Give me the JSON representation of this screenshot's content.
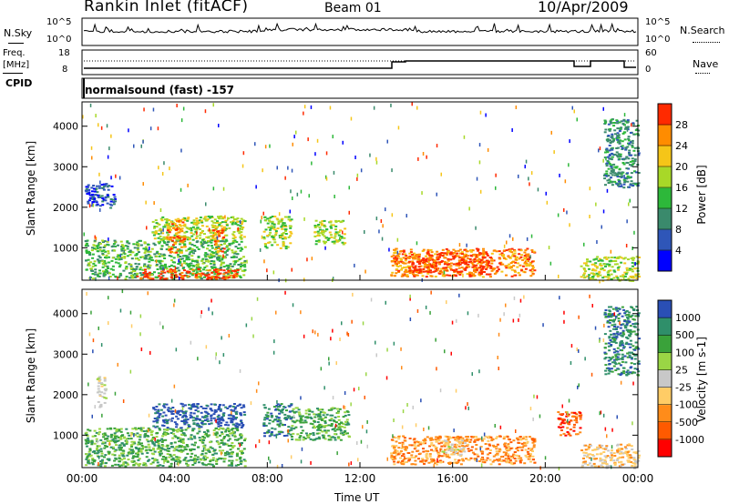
{
  "header": {
    "title": "Rankin Inlet (fitACF)",
    "beam": "Beam 01",
    "date": "10/Apr/2009"
  },
  "nsky_panel": {
    "left_label": "N.Sky",
    "right_label": "N.Search",
    "left_ticks": [
      "10^5",
      "10^0"
    ],
    "right_ticks": [
      "10^5",
      "10^0"
    ]
  },
  "freq_panel": {
    "left_label_1": "Freq.",
    "left_label_2": "[MHz]",
    "right_label": "Nave",
    "left_ticks": [
      "18",
      "8"
    ],
    "right_ticks": [
      "60",
      "0"
    ]
  },
  "cpid_panel": {
    "label": "CPID",
    "text": "normalsound (fast) -157"
  },
  "chart_data": [
    {
      "type": "heatmap",
      "panel": "power",
      "ylabel": "Slant Range [km]",
      "xlabel": "",
      "yticks": [
        1000,
        2000,
        3000,
        4000
      ],
      "ylim": [
        200,
        4600
      ],
      "xlim": [
        0,
        24
      ],
      "colorbar_label": "Power [dB]",
      "colorbar_ticks": [
        "4",
        "8",
        "12",
        "16",
        "20",
        "24",
        "28"
      ],
      "colors": [
        "#0000ff",
        "#2f56b8",
        "#3a8a6c",
        "#2db83a",
        "#a8d828",
        "#f5c518",
        "#ff8c00",
        "#ff2a00"
      ],
      "regions": [
        {
          "t0": 0.1,
          "t1": 7.0,
          "r0": 250,
          "r1": 1200,
          "level": 3
        },
        {
          "t0": 2.3,
          "t1": 6.7,
          "r0": 250,
          "r1": 500,
          "level": 7
        },
        {
          "t0": 3.0,
          "t1": 7.0,
          "r0": 1200,
          "r1": 1800,
          "level": 4
        },
        {
          "t0": 3.6,
          "t1": 4.4,
          "r0": 900,
          "r1": 1700,
          "level": 6
        },
        {
          "t0": 5.6,
          "t1": 6.1,
          "r0": 900,
          "r1": 1500,
          "level": 6
        },
        {
          "t0": 7.8,
          "t1": 9.0,
          "r0": 1000,
          "r1": 1800,
          "level": 4
        },
        {
          "t0": 10.0,
          "t1": 11.3,
          "r0": 1100,
          "r1": 1700,
          "level": 4
        },
        {
          "t0": 13.3,
          "t1": 19.5,
          "r0": 300,
          "r1": 1000,
          "level": 6
        },
        {
          "t0": 14.0,
          "t1": 17.5,
          "r0": 400,
          "r1": 900,
          "level": 7
        },
        {
          "t0": 0.1,
          "t1": 1.4,
          "r0": 2000,
          "r1": 2600,
          "level": 1
        },
        {
          "t0": 22.5,
          "t1": 24.0,
          "r0": 2500,
          "r1": 4200,
          "level": 2
        },
        {
          "t0": 21.5,
          "t1": 24.0,
          "r0": 200,
          "r1": 800,
          "level": 4
        }
      ]
    },
    {
      "type": "heatmap",
      "panel": "velocity",
      "ylabel": "Slant Range [km]",
      "xlabel": "Time UT",
      "yticks": [
        1000,
        2000,
        3000,
        4000
      ],
      "xticks": [
        "00:00",
        "04:00",
        "08:00",
        "12:00",
        "16:00",
        "20:00",
        "00:00"
      ],
      "ylim": [
        200,
        4600
      ],
      "xlim": [
        0,
        24
      ],
      "colorbar_label": "Velocity [m s-1]",
      "colorbar_ticks": [
        "1000",
        "500",
        "100",
        "25",
        "-25",
        "-100",
        "-500",
        "-1000"
      ],
      "colors": [
        "#2a4fb5",
        "#2f8f6a",
        "#3aa23a",
        "#9ad645",
        "#c8c8c8",
        "#ffcc66",
        "#ff8c1a",
        "#ff5a00",
        "#ff0000"
      ],
      "regions": [
        {
          "t0": 0.1,
          "t1": 7.0,
          "r0": 250,
          "r1": 1200,
          "level": 2
        },
        {
          "t0": 3.0,
          "t1": 7.0,
          "r0": 1200,
          "r1": 1800,
          "level": 0
        },
        {
          "t0": 7.8,
          "t1": 9.0,
          "r0": 1000,
          "r1": 1800,
          "level": 1
        },
        {
          "t0": 9.0,
          "t1": 11.5,
          "r0": 900,
          "r1": 1700,
          "level": 2
        },
        {
          "t0": 13.3,
          "t1": 19.5,
          "r0": 300,
          "r1": 1000,
          "level": 6
        },
        {
          "t0": 15.5,
          "t1": 16.5,
          "r0": 500,
          "r1": 900,
          "level": 4
        },
        {
          "t0": 0.6,
          "t1": 1.0,
          "r0": 1700,
          "r1": 2500,
          "level": 4
        },
        {
          "t0": 21.5,
          "t1": 24.0,
          "r0": 200,
          "r1": 800,
          "level": 5
        },
        {
          "t0": 22.5,
          "t1": 24.0,
          "r0": 2500,
          "r1": 4200,
          "level": 1
        },
        {
          "t0": 20.5,
          "t1": 21.5,
          "r0": 1000,
          "r1": 1600,
          "level": 7
        }
      ]
    }
  ]
}
